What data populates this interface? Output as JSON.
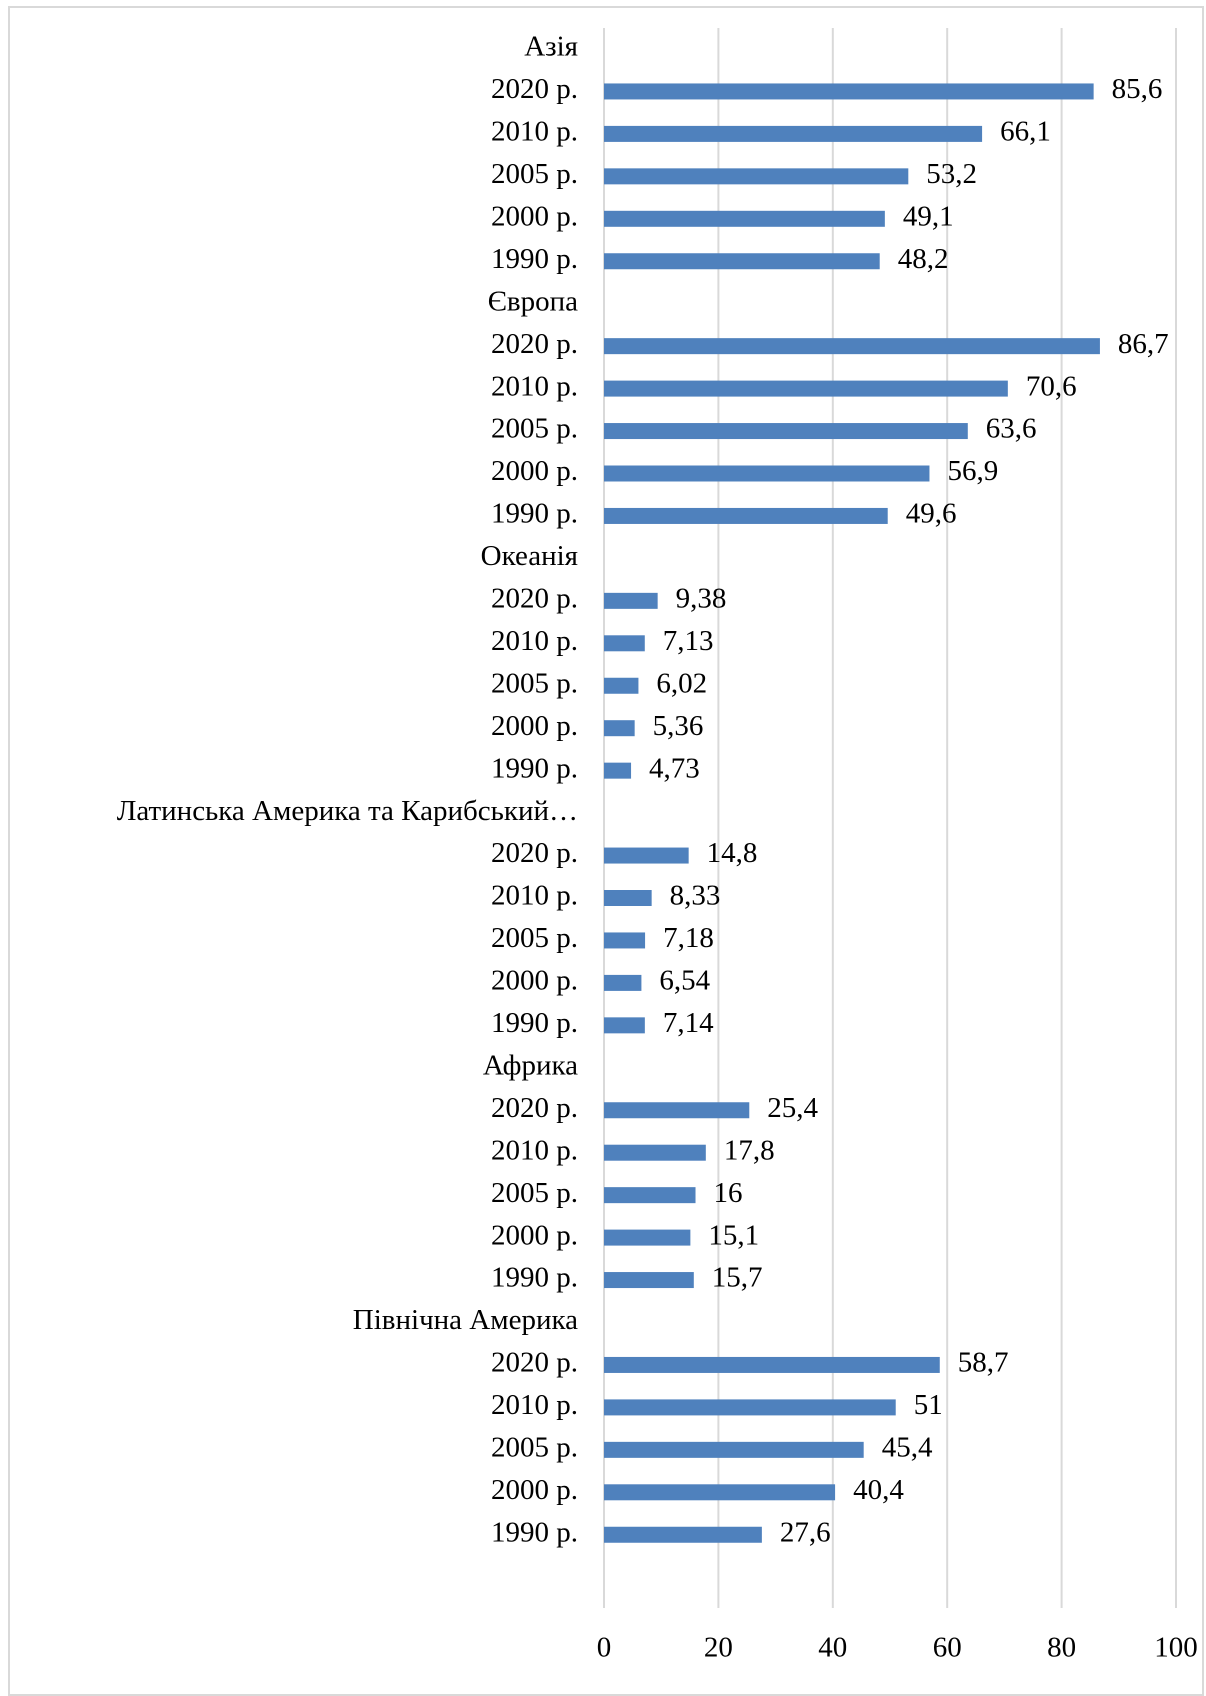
{
  "chart_data": {
    "type": "bar",
    "orientation": "horizontal",
    "title": "",
    "xlabel": "",
    "ylabel": "",
    "xlim": [
      0,
      100
    ],
    "x_ticks": [
      0,
      20,
      40,
      60,
      80,
      100
    ],
    "grid": "vertical",
    "legend": "none",
    "bar_color": "#4f81bd",
    "groups": [
      {
        "name": "Азія",
        "items": [
          {
            "label": "2020 р.",
            "value": 85.6,
            "value_label": "85,6"
          },
          {
            "label": "2010 р.",
            "value": 66.1,
            "value_label": "66,1"
          },
          {
            "label": "2005 р.",
            "value": 53.2,
            "value_label": "53,2"
          },
          {
            "label": "2000 р.",
            "value": 49.1,
            "value_label": "49,1"
          },
          {
            "label": "1990 р.",
            "value": 48.2,
            "value_label": "48,2"
          }
        ]
      },
      {
        "name": "Європа",
        "items": [
          {
            "label": "2020 р.",
            "value": 86.7,
            "value_label": "86,7"
          },
          {
            "label": "2010 р.",
            "value": 70.6,
            "value_label": "70,6"
          },
          {
            "label": "2005 р.",
            "value": 63.6,
            "value_label": "63,6"
          },
          {
            "label": "2000 р.",
            "value": 56.9,
            "value_label": "56,9"
          },
          {
            "label": "1990 р.",
            "value": 49.6,
            "value_label": "49,6"
          }
        ]
      },
      {
        "name": "Океанія",
        "items": [
          {
            "label": "2020 р.",
            "value": 9.38,
            "value_label": "9,38"
          },
          {
            "label": "2010 р.",
            "value": 7.13,
            "value_label": "7,13"
          },
          {
            "label": "2005 р.",
            "value": 6.02,
            "value_label": "6,02"
          },
          {
            "label": "2000 р.",
            "value": 5.36,
            "value_label": "5,36"
          },
          {
            "label": "1990 р.",
            "value": 4.73,
            "value_label": "4,73"
          }
        ]
      },
      {
        "name": "Латинська Америка та Карибський…",
        "items": [
          {
            "label": "2020 р.",
            "value": 14.8,
            "value_label": "14,8"
          },
          {
            "label": "2010 р.",
            "value": 8.33,
            "value_label": "8,33"
          },
          {
            "label": "2005 р.",
            "value": 7.18,
            "value_label": "7,18"
          },
          {
            "label": "2000 р.",
            "value": 6.54,
            "value_label": "6,54"
          },
          {
            "label": "1990 р.",
            "value": 7.14,
            "value_label": "7,14"
          }
        ]
      },
      {
        "name": "Африка",
        "items": [
          {
            "label": "2020 р.",
            "value": 25.4,
            "value_label": "25,4"
          },
          {
            "label": "2010 р.",
            "value": 17.8,
            "value_label": "17,8"
          },
          {
            "label": "2005 р.",
            "value": 16,
            "value_label": "16"
          },
          {
            "label": "2000 р.",
            "value": 15.1,
            "value_label": "15,1"
          },
          {
            "label": "1990 р.",
            "value": 15.7,
            "value_label": "15,7"
          }
        ]
      },
      {
        "name": "Північна Америка",
        "items": [
          {
            "label": "2020 р.",
            "value": 58.7,
            "value_label": "58,7"
          },
          {
            "label": "2010 р.",
            "value": 51,
            "value_label": "51"
          },
          {
            "label": "2005 р.",
            "value": 45.4,
            "value_label": "45,4"
          },
          {
            "label": "2000 р.",
            "value": 40.4,
            "value_label": "40,4"
          },
          {
            "label": "1990 р.",
            "value": 27.6,
            "value_label": "27,6"
          }
        ]
      }
    ]
  }
}
